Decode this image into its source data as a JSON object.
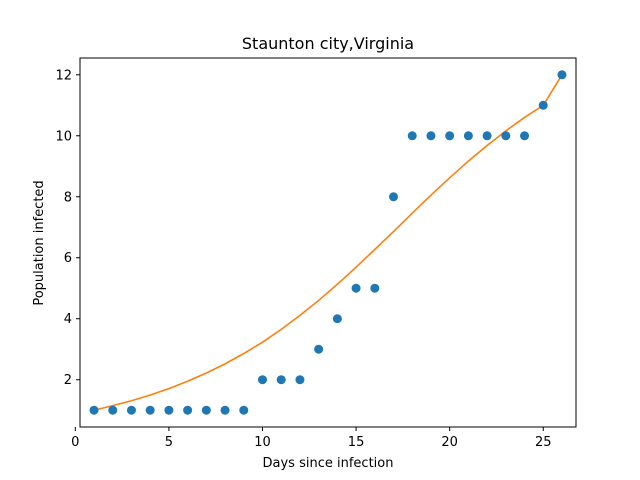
{
  "chart_data": {
    "type": "scatter",
    "title": "Staunton city,Virginia",
    "xlabel": "Days since infection",
    "ylabel": "Population infected",
    "xlim": [
      0.25,
      26.75
    ],
    "ylim": [
      0.45,
      12.55
    ],
    "xticks": [
      0,
      5,
      10,
      15,
      20,
      25
    ],
    "yticks": [
      2,
      4,
      6,
      8,
      10,
      12
    ],
    "grid": false,
    "series": [
      {
        "kind": "scatter",
        "color": "#1f77b4",
        "x": [
          1,
          2,
          3,
          4,
          5,
          6,
          7,
          8,
          9,
          10,
          11,
          12,
          13,
          14,
          15,
          16,
          17,
          18,
          19,
          20,
          21,
          22,
          23,
          24,
          25,
          26
        ],
        "y": [
          1,
          1,
          1,
          1,
          1,
          1,
          1,
          1,
          1,
          2,
          2,
          2,
          3,
          4,
          5,
          5,
          8,
          10,
          10,
          10,
          10,
          10,
          10,
          10,
          11,
          12
        ]
      },
      {
        "kind": "line",
        "color": "#ff7f0e",
        "x": [
          1,
          2,
          3,
          4,
          5,
          6,
          7,
          8,
          9,
          10,
          11,
          12,
          13,
          14,
          15,
          16,
          17,
          18,
          19,
          20,
          21,
          22,
          23,
          24,
          25,
          26
        ],
        "y": [
          1.0,
          1.15,
          1.31,
          1.5,
          1.71,
          1.95,
          2.22,
          2.52,
          2.86,
          3.23,
          3.65,
          4.11,
          4.6,
          5.13,
          5.69,
          6.27,
          6.86,
          7.46,
          8.05,
          8.62,
          9.17,
          9.68,
          10.16,
          10.6,
          11.0,
          12.0
        ]
      }
    ]
  }
}
